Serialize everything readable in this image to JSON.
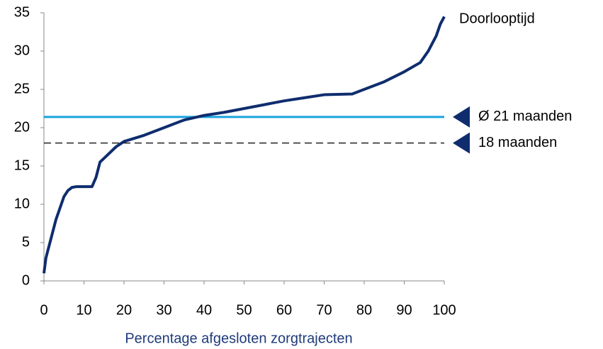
{
  "chart_data": {
    "type": "line",
    "x_label": "Percentage afgesloten zorgtrajecten",
    "x": [
      0,
      0.5,
      1,
      2,
      3,
      4,
      5,
      6,
      7,
      8,
      10,
      12,
      13,
      14,
      16,
      18,
      20,
      25,
      30,
      35,
      40,
      45,
      50,
      55,
      60,
      65,
      70,
      77,
      80,
      85,
      90,
      94,
      96,
      98,
      99,
      100
    ],
    "series": [
      {
        "name": "Doorlooptijd",
        "color": "#0f2d6e",
        "values": [
          1,
          3,
          4,
          6,
          8,
          9.5,
          11,
          11.8,
          12.2,
          12.3,
          12.3,
          12.3,
          13.5,
          15.5,
          16.5,
          17.5,
          18.2,
          19,
          20,
          21,
          21.6,
          22,
          22.5,
          23,
          23.5,
          23.9,
          24.3,
          24.4,
          25,
          26,
          27.3,
          28.5,
          30,
          32,
          33.5,
          34.5
        ]
      }
    ],
    "reference_lines": [
      {
        "value": 21.4,
        "label": "Ø 21 maanden",
        "color": "#1aa3dc",
        "style": "solid"
      },
      {
        "value": 18,
        "label": "18 maanden",
        "color": "#000000",
        "style": "dashed"
      }
    ],
    "marker_color": "#0f2d6e",
    "xlim": [
      0,
      100
    ],
    "xticks": [
      0,
      10,
      20,
      30,
      40,
      50,
      60,
      70,
      80,
      90,
      100
    ],
    "ylim": [
      0,
      35
    ],
    "yticks": [
      0,
      5,
      10,
      15,
      20,
      25,
      30,
      35
    ]
  }
}
